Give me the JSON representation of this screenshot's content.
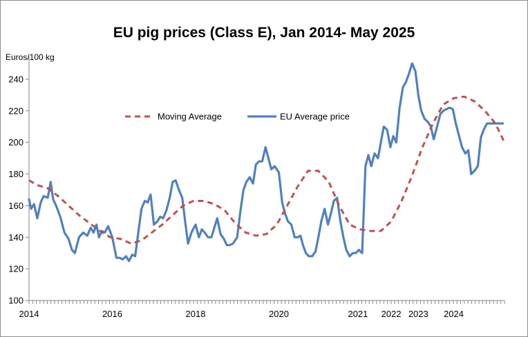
{
  "chart_data": {
    "type": "line",
    "title": "EU pig prices (Class  E), Jan 2014- May 2025",
    "xlabel": "",
    "ylabel": "Euros/100 kg",
    "ylim": [
      100,
      250
    ],
    "yticks": [
      100,
      120,
      140,
      160,
      180,
      200,
      220,
      240
    ],
    "xlim": [
      2014.0,
      2025.42
    ],
    "xtick_labels": [
      {
        "x": 2014.0,
        "label": "2014"
      },
      {
        "x": 2016.0,
        "label": "2016"
      },
      {
        "x": 2018.0,
        "label": "2018"
      },
      {
        "x": 2020.0,
        "label": "2020"
      },
      {
        "x": 2021.9,
        "label": "2021"
      },
      {
        "x": 2022.7,
        "label": "2022"
      },
      {
        "x": 2023.35,
        "label": "2023"
      },
      {
        "x": 2024.2,
        "label": "2024"
      }
    ],
    "grid": false,
    "legend_position": "upper-middle",
    "series": [
      {
        "name": "EU Average price",
        "color": "#4f81bd",
        "style": "solid",
        "x": [
          2014.0,
          2014.05,
          2014.12,
          2014.2,
          2014.28,
          2014.35,
          2014.45,
          2014.52,
          2014.58,
          2014.65,
          2014.75,
          2014.85,
          2014.95,
          2015.03,
          2015.1,
          2015.2,
          2015.3,
          2015.4,
          2015.48,
          2015.55,
          2015.62,
          2015.68,
          2015.75,
          2015.82,
          2015.9,
          2016.0,
          2016.1,
          2016.18,
          2016.25,
          2016.33,
          2016.4,
          2016.48,
          2016.55,
          2016.62,
          2016.7,
          2016.78,
          2016.85,
          2016.92,
          2017.0,
          2017.08,
          2017.15,
          2017.22,
          2017.3,
          2017.38,
          2017.45,
          2017.52,
          2017.6,
          2017.68,
          2017.75,
          2017.82,
          2017.9,
          2018.0,
          2018.08,
          2018.15,
          2018.22,
          2018.3,
          2018.38,
          2018.45,
          2018.52,
          2018.6,
          2018.68,
          2018.75,
          2018.82,
          2018.9,
          2019.0,
          2019.08,
          2019.15,
          2019.22,
          2019.3,
          2019.38,
          2019.45,
          2019.52,
          2019.6,
          2019.68,
          2019.75,
          2019.82,
          2019.9,
          2020.0,
          2020.08,
          2020.15,
          2020.22,
          2020.3,
          2020.38,
          2020.45,
          2020.52,
          2020.58,
          2020.65,
          2020.72,
          2020.8,
          2020.88,
          2020.95,
          2021.02,
          2021.1,
          2021.18,
          2021.25,
          2021.32,
          2021.4,
          2021.48,
          2021.55,
          2021.62,
          2021.7,
          2021.78,
          2021.85,
          2021.92,
          2022.0,
          2022.08,
          2022.15,
          2022.22,
          2022.3,
          2022.38,
          2022.45,
          2022.52,
          2022.6,
          2022.68,
          2022.75,
          2022.82,
          2022.9,
          2022.98,
          2023.05,
          2023.12,
          2023.2,
          2023.28,
          2023.35,
          2023.42,
          2023.5,
          2023.58,
          2023.65,
          2023.72,
          2023.8,
          2023.88,
          2023.95,
          2024.02,
          2024.1,
          2024.18,
          2024.25,
          2024.32,
          2024.4,
          2024.48,
          2024.55,
          2024.62,
          2024.7,
          2024.78,
          2024.85,
          2024.92,
          2025.0,
          2025.08,
          2025.15,
          2025.22,
          2025.3,
          2025.38
        ],
        "values": [
          164,
          158,
          161,
          152,
          162,
          166,
          165,
          175,
          164,
          160,
          153,
          143,
          139,
          132,
          130,
          140,
          143,
          141,
          146,
          143,
          148,
          140,
          144,
          143,
          147,
          140,
          127,
          127,
          126,
          128,
          125,
          129,
          128,
          142,
          158,
          163,
          162,
          167,
          148,
          150,
          153,
          152,
          157,
          165,
          175,
          176,
          170,
          165,
          150,
          136,
          143,
          148,
          140,
          145,
          143,
          140,
          140,
          146,
          152,
          142,
          139,
          135,
          135,
          136,
          140,
          157,
          170,
          175,
          178,
          174,
          186,
          188,
          188,
          197,
          190,
          183,
          185,
          181,
          162,
          155,
          150,
          148,
          140,
          140,
          141,
          135,
          130,
          128,
          128,
          131,
          140,
          150,
          158,
          148,
          155,
          163,
          165,
          150,
          140,
          132,
          128,
          130,
          130,
          132,
          130,
          185,
          192,
          185,
          193,
          190,
          200,
          210,
          208,
          197,
          204,
          200,
          222,
          235,
          238,
          243,
          250,
          245,
          230,
          220,
          215,
          213,
          210,
          202,
          210,
          218,
          220,
          221,
          222,
          221,
          212,
          205,
          197,
          193,
          195,
          180,
          182,
          185,
          203,
          208,
          212,
          212,
          212,
          212,
          212,
          212
        ],
        "note_end": 2025.42
      },
      {
        "name": "Moving Average",
        "color": "#c0504d",
        "style": "dashed",
        "x": [
          2014.0,
          2014.2,
          2014.45,
          2014.7,
          2014.95,
          2015.2,
          2015.45,
          2015.7,
          2015.95,
          2016.2,
          2016.45,
          2016.7,
          2016.95,
          2017.2,
          2017.45,
          2017.7,
          2017.95,
          2018.2,
          2018.45,
          2018.7,
          2018.95,
          2019.2,
          2019.45,
          2019.7,
          2019.95,
          2020.2,
          2020.45,
          2020.7,
          2020.95,
          2021.2,
          2021.45,
          2021.7,
          2021.95,
          2022.2,
          2022.45,
          2022.7,
          2022.95,
          2023.2,
          2023.45,
          2023.7,
          2023.95,
          2024.2,
          2024.45,
          2024.7,
          2024.95,
          2025.2,
          2025.42
        ],
        "values": [
          176,
          173,
          171,
          166,
          160,
          154,
          149,
          144,
          140,
          139,
          136,
          138,
          143,
          148,
          154,
          160,
          163,
          163,
          161,
          157,
          149,
          143,
          141,
          142,
          148,
          160,
          172,
          182,
          182,
          175,
          160,
          148,
          145,
          144,
          144,
          150,
          163,
          179,
          197,
          212,
          224,
          228,
          229,
          226,
          220,
          212,
          200
        ]
      }
    ]
  }
}
